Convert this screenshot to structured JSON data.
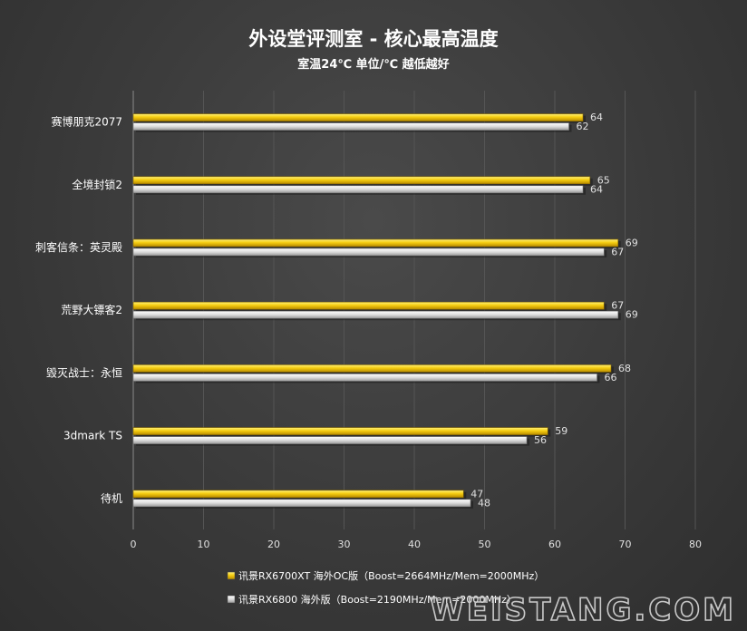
{
  "chart_data": {
    "type": "bar",
    "orientation": "horizontal",
    "title": "外设堂评测室  -  核心最高温度",
    "subtitle": "室温24℃  单位/℃  越低越好",
    "categories": [
      "赛博朋克2077",
      "全境封锁2",
      "刺客信条：英灵殿",
      "荒野大镖客2",
      "毁灭战士：永恒",
      "3dmark TS",
      "待机"
    ],
    "series": [
      {
        "name": "讯景RX6700XT 海外OC版（Boost=2664MHz/Mem=2000MHz）",
        "color": "#f2c200",
        "values": [
          64,
          65,
          69,
          67,
          68,
          59,
          47
        ]
      },
      {
        "name": "讯景RX6800 海外版（Boost=2190MHz/Mem=2000MHz）",
        "color": "#d8d8d8",
        "values": [
          62,
          64,
          67,
          69,
          66,
          56,
          48
        ]
      }
    ],
    "xlim": [
      0,
      80
    ],
    "xticks": [
      0,
      10,
      20,
      30,
      40,
      50,
      60,
      70,
      80
    ],
    "grid": "vertical",
    "legend_position": "bottom"
  },
  "watermark": "WEISTANG.COM"
}
